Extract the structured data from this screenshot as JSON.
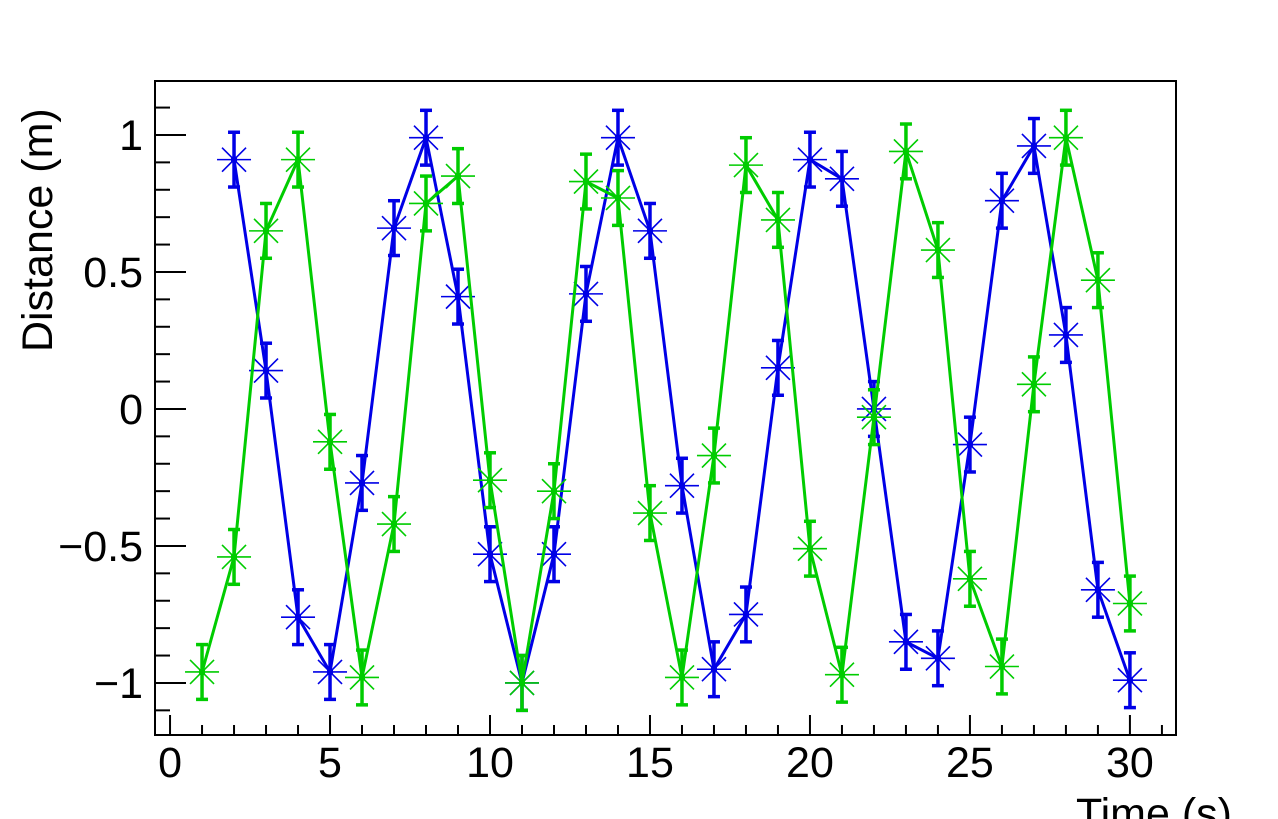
{
  "window": {
    "background": "#ffffff"
  },
  "chart_data": {
    "type": "line",
    "title": "",
    "xlabel": "Time (s)",
    "ylabel": "Distance (m)",
    "xlim": [
      -0.47,
      31.44
    ],
    "ylim": [
      -1.19,
      1.197
    ],
    "grid": false,
    "legend": "none",
    "frame_color": "#000000",
    "marker_style": "x-star-with-vertical-error-bars",
    "error_y": 0.1,
    "x_major_ticks": [
      0,
      5,
      10,
      15,
      20,
      25,
      30
    ],
    "x_tick_labels": [
      "0",
      "5",
      "10",
      "15",
      "20",
      "25",
      "30"
    ],
    "x_minor_tick_step": 1,
    "y_major_ticks": [
      -1,
      -0.5,
      0,
      0.5,
      1
    ],
    "y_tick_labels": [
      "−1",
      "−0.5",
      "0",
      "0.5",
      "1"
    ],
    "y_minor_tick_step": 0.1,
    "series": [
      {
        "name": "blue-series",
        "color": "#0000e6",
        "x": [
          2,
          3,
          4,
          5,
          6,
          7,
          8,
          9,
          10,
          11,
          12,
          13,
          14,
          15,
          16,
          17,
          18,
          19,
          20,
          21,
          22,
          23,
          24,
          25,
          26,
          27,
          28,
          29,
          30
        ],
        "y": [
          0.91,
          0.14,
          -0.76,
          -0.96,
          -0.27,
          0.66,
          0.99,
          0.41,
          -0.53,
          -1.0,
          -0.53,
          0.42,
          0.99,
          0.65,
          -0.28,
          -0.95,
          -0.75,
          0.15,
          0.91,
          0.84,
          0.0,
          -0.85,
          -0.91,
          -0.13,
          0.76,
          0.96,
          0.27,
          -0.66,
          -0.99
        ]
      },
      {
        "name": "green-series",
        "color": "#00cc00",
        "x": [
          1,
          2,
          3,
          4,
          5,
          6,
          7,
          8,
          9,
          10,
          11,
          12,
          13,
          14,
          15,
          16,
          17,
          18,
          19,
          20,
          21,
          22,
          23,
          24,
          25,
          26,
          27,
          28,
          29,
          30
        ],
        "y": [
          -0.96,
          -0.54,
          0.65,
          0.91,
          -0.12,
          -0.98,
          -0.42,
          0.75,
          0.85,
          -0.26,
          -1.0,
          -0.3,
          0.83,
          0.77,
          -0.38,
          -0.98,
          -0.17,
          0.89,
          0.69,
          -0.51,
          -0.97,
          -0.03,
          0.94,
          0.58,
          -0.62,
          -0.94,
          0.09,
          0.99,
          0.47,
          -0.71
        ]
      }
    ]
  }
}
